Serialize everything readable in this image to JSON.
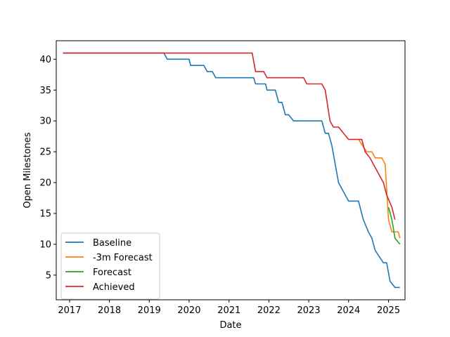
{
  "chart_data": {
    "type": "line",
    "title": "",
    "xlabel": "Date",
    "ylabel": "Open Milestones",
    "xlim": [
      "2016-09-01",
      "2025-06-01"
    ],
    "ylim": [
      1,
      43
    ],
    "x_ticks": [
      "2017",
      "2018",
      "2019",
      "2020",
      "2021",
      "2022",
      "2023",
      "2024",
      "2025"
    ],
    "y_ticks": [
      5,
      10,
      15,
      20,
      25,
      30,
      35,
      40
    ],
    "grid": false,
    "legend_position": "lower-left",
    "series": [
      {
        "name": "Baseline",
        "color": "#1f77b4",
        "points": [
          [
            "2016-11-01",
            41
          ],
          [
            "2019-05-15",
            41
          ],
          [
            "2019-06-15",
            40
          ],
          [
            "2020-01-01",
            40
          ],
          [
            "2020-01-15",
            39
          ],
          [
            "2020-05-15",
            39
          ],
          [
            "2020-06-15",
            38
          ],
          [
            "2020-08-01",
            38
          ],
          [
            "2020-09-01",
            37
          ],
          [
            "2021-08-15",
            37
          ],
          [
            "2021-09-01",
            36
          ],
          [
            "2021-12-01",
            36
          ],
          [
            "2021-12-15",
            35
          ],
          [
            "2022-03-01",
            35
          ],
          [
            "2022-04-01",
            33
          ],
          [
            "2022-05-01",
            33
          ],
          [
            "2022-06-01",
            31
          ],
          [
            "2022-07-01",
            31
          ],
          [
            "2022-08-15",
            30
          ],
          [
            "2023-05-01",
            30
          ],
          [
            "2023-06-01",
            28
          ],
          [
            "2023-07-01",
            28
          ],
          [
            "2023-08-01",
            26
          ],
          [
            "2023-10-01",
            20
          ],
          [
            "2024-01-01",
            17
          ],
          [
            "2024-04-01",
            17
          ],
          [
            "2024-05-15",
            14
          ],
          [
            "2024-07-01",
            12
          ],
          [
            "2024-08-01",
            11
          ],
          [
            "2024-09-01",
            9
          ],
          [
            "2024-11-15",
            7
          ],
          [
            "2024-12-15",
            7
          ],
          [
            "2025-01-15",
            4
          ],
          [
            "2025-03-01",
            3
          ],
          [
            "2025-04-15",
            3
          ]
        ]
      },
      {
        "name": "-3m Forecast",
        "color": "#ff7f0e",
        "points": [
          [
            "2024-04-01",
            27
          ],
          [
            "2024-06-15",
            25
          ],
          [
            "2024-08-01",
            25
          ],
          [
            "2024-09-01",
            24
          ],
          [
            "2024-11-01",
            24
          ],
          [
            "2024-12-01",
            23
          ],
          [
            "2025-01-01",
            14
          ],
          [
            "2025-02-01",
            12
          ],
          [
            "2025-03-01",
            12
          ],
          [
            "2025-04-01",
            12
          ],
          [
            "2025-04-15",
            11
          ]
        ]
      },
      {
        "name": "Forecast",
        "color": "#2ca02c",
        "points": [
          [
            "2025-01-01",
            16
          ],
          [
            "2025-02-01",
            14
          ],
          [
            "2025-03-01",
            11
          ],
          [
            "2025-04-15",
            10
          ]
        ]
      },
      {
        "name": "Achieved",
        "color": "#d62728",
        "points": [
          [
            "2016-11-01",
            41
          ],
          [
            "2021-08-01",
            41
          ],
          [
            "2021-09-01",
            38
          ],
          [
            "2021-11-15",
            38
          ],
          [
            "2021-12-15",
            37
          ],
          [
            "2022-11-15",
            37
          ],
          [
            "2022-12-15",
            36
          ],
          [
            "2023-05-01",
            36
          ],
          [
            "2023-06-01",
            35
          ],
          [
            "2023-07-15",
            30
          ],
          [
            "2023-08-15",
            29
          ],
          [
            "2023-10-01",
            29
          ],
          [
            "2024-01-01",
            27
          ],
          [
            "2024-05-01",
            27
          ],
          [
            "2024-06-01",
            25
          ],
          [
            "2024-07-15",
            24
          ],
          [
            "2024-11-15",
            20
          ],
          [
            "2024-12-15",
            18
          ],
          [
            "2025-02-01",
            16
          ],
          [
            "2025-03-01",
            14
          ]
        ]
      }
    ]
  }
}
